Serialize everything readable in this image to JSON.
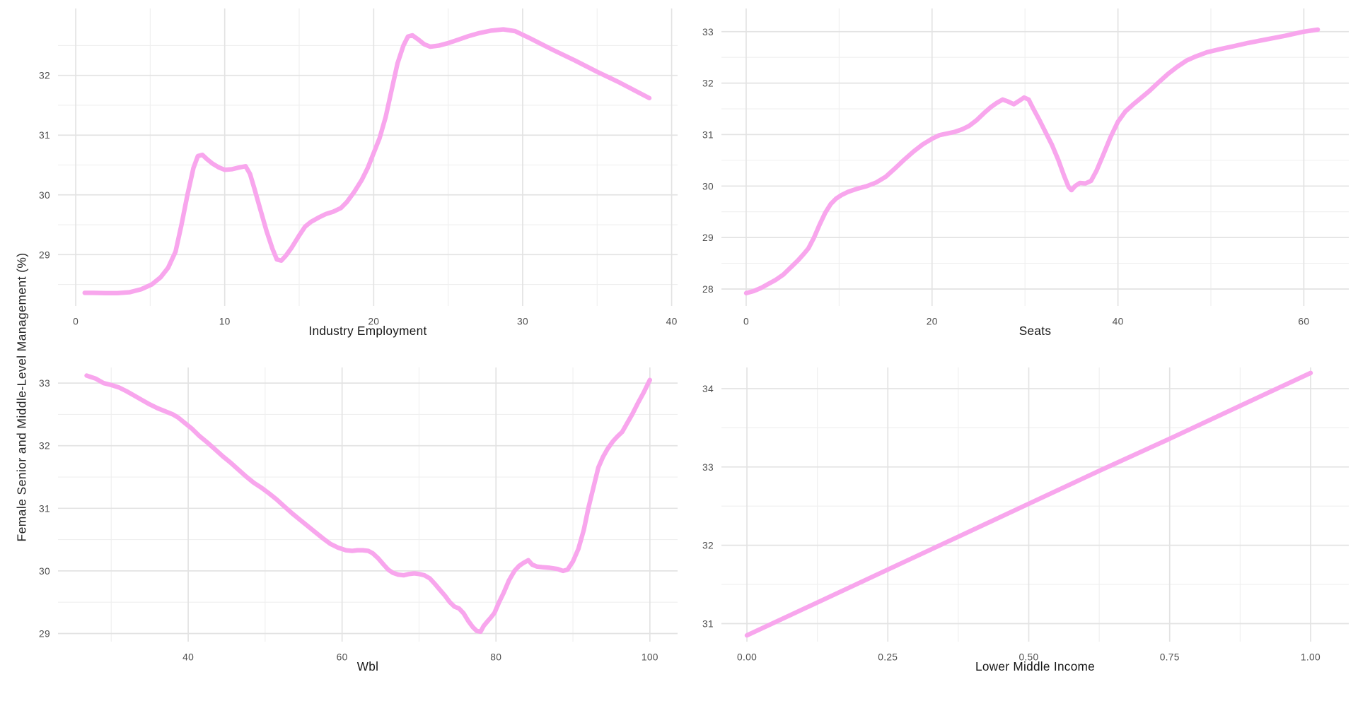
{
  "y_axis_title": "Female Senior and Middle-Level Management (%)",
  "colors": {
    "line": "#f8a6ed",
    "grid_major": "#e3e3e3",
    "grid_minor": "#efefef",
    "tick_label": "#4f4f4f",
    "axis_title": "#161616",
    "background": "#ffffff"
  },
  "chart_data": [
    {
      "type": "line",
      "title": "",
      "xlabel": "Industry Employment",
      "ylabel": "Female Senior and Middle-Level Management (%)",
      "legend": "none",
      "grid": "on",
      "xlim": [
        -1.19,
        40.4
      ],
      "ylim": [
        28.14,
        33.12
      ],
      "x_major_ticks": [
        0,
        10,
        20,
        30,
        40
      ],
      "x_tick_labels": [
        "0",
        "10",
        "20",
        "30",
        "40"
      ],
      "x_minor_ticks": [
        5,
        15,
        25,
        35
      ],
      "y_major_ticks": [
        29,
        30,
        31,
        32
      ],
      "y_tick_labels": [
        "29",
        "30",
        "31",
        "32"
      ],
      "y_minor_ticks": [
        28.5,
        29.5,
        30.5,
        31.5,
        32.5
      ],
      "points": [
        [
          0.6,
          28.36
        ],
        [
          1.2,
          28.36
        ],
        [
          2.0,
          28.355
        ],
        [
          2.8,
          28.355
        ],
        [
          3.6,
          28.37
        ],
        [
          4.4,
          28.42
        ],
        [
          5.1,
          28.5
        ],
        [
          5.7,
          28.62
        ],
        [
          6.2,
          28.78
        ],
        [
          6.7,
          29.05
        ],
        [
          7.1,
          29.5
        ],
        [
          7.5,
          30.0
        ],
        [
          7.9,
          30.45
        ],
        [
          8.2,
          30.65
        ],
        [
          8.5,
          30.67
        ],
        [
          8.8,
          30.6
        ],
        [
          9.2,
          30.52
        ],
        [
          9.6,
          30.46
        ],
        [
          10.0,
          30.42
        ],
        [
          10.5,
          30.43
        ],
        [
          11.0,
          30.46
        ],
        [
          11.4,
          30.48
        ],
        [
          11.7,
          30.35
        ],
        [
          12.0,
          30.1
        ],
        [
          12.4,
          29.75
        ],
        [
          12.8,
          29.4
        ],
        [
          13.2,
          29.1
        ],
        [
          13.5,
          28.92
        ],
        [
          13.8,
          28.9
        ],
        [
          14.1,
          28.98
        ],
        [
          14.5,
          29.12
        ],
        [
          15.0,
          29.32
        ],
        [
          15.4,
          29.47
        ],
        [
          15.8,
          29.55
        ],
        [
          16.3,
          29.62
        ],
        [
          16.8,
          29.68
        ],
        [
          17.3,
          29.72
        ],
        [
          17.8,
          29.78
        ],
        [
          18.2,
          29.88
        ],
        [
          18.7,
          30.05
        ],
        [
          19.2,
          30.25
        ],
        [
          19.6,
          30.45
        ],
        [
          20.0,
          30.7
        ],
        [
          20.4,
          30.95
        ],
        [
          20.8,
          31.3
        ],
        [
          21.2,
          31.75
        ],
        [
          21.6,
          32.2
        ],
        [
          22.0,
          32.5
        ],
        [
          22.3,
          32.65
        ],
        [
          22.6,
          32.67
        ],
        [
          23.0,
          32.6
        ],
        [
          23.4,
          32.52
        ],
        [
          23.8,
          32.48
        ],
        [
          24.4,
          32.5
        ],
        [
          25.0,
          32.54
        ],
        [
          25.7,
          32.6
        ],
        [
          26.4,
          32.66
        ],
        [
          27.1,
          32.71
        ],
        [
          27.9,
          32.75
        ],
        [
          28.7,
          32.77
        ],
        [
          29.5,
          32.74
        ],
        [
          30.5,
          32.62
        ],
        [
          32.0,
          32.43
        ],
        [
          33.5,
          32.25
        ],
        [
          35.0,
          32.06
        ],
        [
          36.5,
          31.88
        ],
        [
          37.5,
          31.75
        ],
        [
          38.5,
          31.62
        ]
      ]
    },
    {
      "type": "line",
      "title": "",
      "xlabel": "Seats",
      "ylabel": "Female Senior and Middle-Level Management (%)",
      "legend": "none",
      "grid": "on",
      "xlim": [
        -2.66,
        64.84
      ],
      "ylim": [
        27.67,
        33.45
      ],
      "x_major_ticks": [
        0,
        20,
        40,
        60
      ],
      "x_tick_labels": [
        "0",
        "20",
        "40",
        "60"
      ],
      "x_minor_ticks": [
        10,
        30,
        50
      ],
      "y_major_ticks": [
        28,
        29,
        30,
        31,
        32,
        33
      ],
      "y_tick_labels": [
        "28",
        "29",
        "30",
        "31",
        "32",
        "33"
      ],
      "y_minor_ticks": [
        28.5,
        29.5,
        30.5,
        31.5,
        32.5
      ],
      "points": [
        [
          0,
          27.92
        ],
        [
          0.8,
          27.96
        ],
        [
          1.6,
          28.02
        ],
        [
          2.4,
          28.1
        ],
        [
          3.2,
          28.18
        ],
        [
          4.0,
          28.28
        ],
        [
          4.8,
          28.42
        ],
        [
          5.6,
          28.56
        ],
        [
          6.2,
          28.68
        ],
        [
          6.7,
          28.79
        ],
        [
          7.3,
          29.0
        ],
        [
          7.9,
          29.25
        ],
        [
          8.5,
          29.48
        ],
        [
          9.1,
          29.65
        ],
        [
          9.7,
          29.76
        ],
        [
          10.3,
          29.83
        ],
        [
          11.0,
          29.89
        ],
        [
          12.0,
          29.95
        ],
        [
          13.0,
          30.0
        ],
        [
          14.0,
          30.07
        ],
        [
          15.0,
          30.18
        ],
        [
          16.0,
          30.34
        ],
        [
          17.0,
          30.51
        ],
        [
          18.0,
          30.67
        ],
        [
          19.0,
          30.81
        ],
        [
          20.0,
          30.92
        ],
        [
          20.8,
          30.99
        ],
        [
          21.6,
          31.02
        ],
        [
          22.4,
          31.05
        ],
        [
          23.2,
          31.1
        ],
        [
          24.0,
          31.17
        ],
        [
          24.8,
          31.28
        ],
        [
          25.6,
          31.42
        ],
        [
          26.3,
          31.53
        ],
        [
          27.0,
          31.62
        ],
        [
          27.6,
          31.68
        ],
        [
          28.2,
          31.64
        ],
        [
          28.8,
          31.59
        ],
        [
          29.4,
          31.66
        ],
        [
          29.9,
          31.72
        ],
        [
          30.4,
          31.68
        ],
        [
          30.9,
          31.5
        ],
        [
          31.5,
          31.3
        ],
        [
          32.2,
          31.05
        ],
        [
          32.9,
          30.8
        ],
        [
          33.6,
          30.5
        ],
        [
          34.2,
          30.2
        ],
        [
          34.7,
          29.98
        ],
        [
          35.0,
          29.92
        ],
        [
          35.4,
          30.0
        ],
        [
          35.9,
          30.06
        ],
        [
          36.5,
          30.05
        ],
        [
          37.1,
          30.1
        ],
        [
          37.7,
          30.3
        ],
        [
          38.4,
          30.6
        ],
        [
          39.2,
          30.95
        ],
        [
          40.0,
          31.25
        ],
        [
          40.8,
          31.45
        ],
        [
          41.6,
          31.58
        ],
        [
          42.4,
          31.7
        ],
        [
          43.4,
          31.85
        ],
        [
          44.4,
          32.02
        ],
        [
          45.4,
          32.18
        ],
        [
          46.4,
          32.32
        ],
        [
          47.4,
          32.44
        ],
        [
          48.4,
          32.52
        ],
        [
          49.6,
          32.6
        ],
        [
          51.0,
          32.66
        ],
        [
          52.5,
          32.72
        ],
        [
          54.0,
          32.78
        ],
        [
          56.0,
          32.85
        ],
        [
          58.0,
          32.92
        ],
        [
          60.0,
          33.0
        ],
        [
          61.5,
          33.04
        ]
      ]
    },
    {
      "type": "line",
      "title": "",
      "xlabel": "Wbl",
      "ylabel": "Female Senior and Middle-Level Management (%)",
      "legend": "none",
      "grid": "on",
      "xlim": [
        23.08,
        103.6
      ],
      "ylim": [
        28.87,
        33.25
      ],
      "x_major_ticks": [
        40,
        60,
        80,
        100
      ],
      "x_tick_labels": [
        "40",
        "60",
        "80",
        "100"
      ],
      "x_minor_ticks": [
        30,
        50,
        70,
        90
      ],
      "y_major_ticks": [
        29,
        30,
        31,
        32,
        33
      ],
      "y_tick_labels": [
        "29",
        "30",
        "31",
        "32",
        "33"
      ],
      "y_minor_ticks": [
        29.5,
        30.5,
        31.5,
        32.5
      ],
      "points": [
        [
          26.8,
          33.12
        ],
        [
          28,
          33.07
        ],
        [
          29,
          33.0
        ],
        [
          30,
          32.97
        ],
        [
          31,
          32.93
        ],
        [
          32,
          32.87
        ],
        [
          33,
          32.8
        ],
        [
          34,
          32.73
        ],
        [
          35,
          32.66
        ],
        [
          36,
          32.6
        ],
        [
          37,
          32.55
        ],
        [
          38,
          32.5
        ],
        [
          38.7,
          32.45
        ],
        [
          39.5,
          32.37
        ],
        [
          40.5,
          32.27
        ],
        [
          41.5,
          32.15
        ],
        [
          42.5,
          32.05
        ],
        [
          43.5,
          31.94
        ],
        [
          44.5,
          31.83
        ],
        [
          45.5,
          31.73
        ],
        [
          46.5,
          31.62
        ],
        [
          47.5,
          31.51
        ],
        [
          48.5,
          31.41
        ],
        [
          49.5,
          31.33
        ],
        [
          50.5,
          31.24
        ],
        [
          51.5,
          31.14
        ],
        [
          52.5,
          31.03
        ],
        [
          53.5,
          30.92
        ],
        [
          54.5,
          30.82
        ],
        [
          55.5,
          30.72
        ],
        [
          56.5,
          30.62
        ],
        [
          57.5,
          30.52
        ],
        [
          58.5,
          30.43
        ],
        [
          59.5,
          30.37
        ],
        [
          60.5,
          30.33
        ],
        [
          61.3,
          30.32
        ],
        [
          62.0,
          30.33
        ],
        [
          62.7,
          30.33
        ],
        [
          63.4,
          30.32
        ],
        [
          64.0,
          30.28
        ],
        [
          64.7,
          30.2
        ],
        [
          65.4,
          30.1
        ],
        [
          66.0,
          30.02
        ],
        [
          66.6,
          29.97
        ],
        [
          67.3,
          29.94
        ],
        [
          68.0,
          29.93
        ],
        [
          68.7,
          29.95
        ],
        [
          69.4,
          29.96
        ],
        [
          70.0,
          29.95
        ],
        [
          70.7,
          29.93
        ],
        [
          71.4,
          29.88
        ],
        [
          72.0,
          29.8
        ],
        [
          72.7,
          29.7
        ],
        [
          73.4,
          29.6
        ],
        [
          74.0,
          29.5
        ],
        [
          74.6,
          29.43
        ],
        [
          75.2,
          29.4
        ],
        [
          75.8,
          29.32
        ],
        [
          76.4,
          29.2
        ],
        [
          77.0,
          29.1
        ],
        [
          77.5,
          29.04
        ],
        [
          78.0,
          29.03
        ],
        [
          78.4,
          29.12
        ],
        [
          78.8,
          29.18
        ],
        [
          79.3,
          29.25
        ],
        [
          79.8,
          29.33
        ],
        [
          80.4,
          29.5
        ],
        [
          81.0,
          29.65
        ],
        [
          81.7,
          29.85
        ],
        [
          82.4,
          30.0
        ],
        [
          83.0,
          30.08
        ],
        [
          83.6,
          30.13
        ],
        [
          84.2,
          30.17
        ],
        [
          84.7,
          30.1
        ],
        [
          85.3,
          30.07
        ],
        [
          86.0,
          30.06
        ],
        [
          87.0,
          30.05
        ],
        [
          88.0,
          30.03
        ],
        [
          88.7,
          30.0
        ],
        [
          89.3,
          30.02
        ],
        [
          90.0,
          30.15
        ],
        [
          90.7,
          30.35
        ],
        [
          91.4,
          30.65
        ],
        [
          92.0,
          31.0
        ],
        [
          92.7,
          31.35
        ],
        [
          93.3,
          31.65
        ],
        [
          93.9,
          31.82
        ],
        [
          94.5,
          31.95
        ],
        [
          95.2,
          32.07
        ],
        [
          95.8,
          32.15
        ],
        [
          96.4,
          32.22
        ],
        [
          97.0,
          32.35
        ],
        [
          97.7,
          32.5
        ],
        [
          98.4,
          32.67
        ],
        [
          99.2,
          32.85
        ],
        [
          100.0,
          33.05
        ]
      ]
    },
    {
      "type": "line",
      "title": "",
      "xlabel": "Lower Middle Income",
      "ylabel": "Female Senior and Middle-Level Management (%)",
      "legend": "none",
      "grid": "on",
      "xlim": [
        -0.0452,
        1.0678
      ],
      "ylim": [
        30.77,
        34.27
      ],
      "x_major_ticks": [
        0,
        0.25,
        0.5,
        0.75,
        1
      ],
      "x_tick_labels": [
        "0.00",
        "0.25",
        "0.50",
        "0.75",
        "1.00"
      ],
      "x_minor_ticks": [
        0.125,
        0.375,
        0.625,
        0.875
      ],
      "y_major_ticks": [
        31,
        32,
        33,
        34
      ],
      "y_tick_labels": [
        "31",
        "32",
        "33",
        "34"
      ],
      "y_minor_ticks": [
        31.5,
        32.5,
        33.5
      ],
      "points": [
        [
          0,
          30.85
        ],
        [
          0.125,
          31.27
        ],
        [
          0.25,
          31.69
        ],
        [
          0.375,
          32.11
        ],
        [
          0.5,
          32.53
        ],
        [
          0.625,
          32.95
        ],
        [
          0.75,
          33.36
        ],
        [
          0.875,
          33.78
        ],
        [
          1,
          34.2
        ]
      ]
    }
  ]
}
